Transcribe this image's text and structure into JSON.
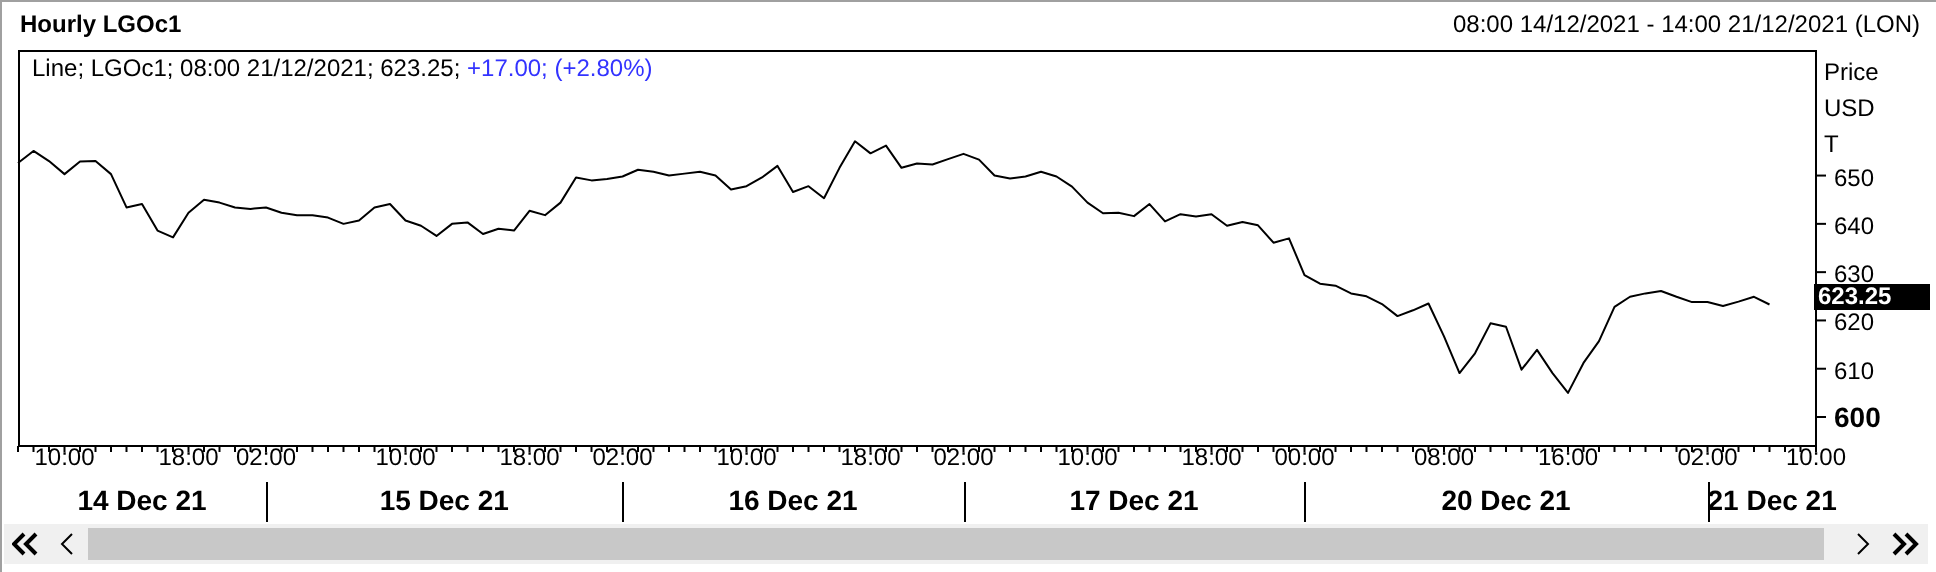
{
  "chart_data": {
    "type": "line",
    "title": "Hourly LGOc1",
    "subtitle": "08:00 14/12/2021 - 14:00 21/12/2021 (LON)",
    "ylabel": "Price USD T",
    "categories": [
      null,
      null,
      null,
      "10:00",
      null,
      null,
      null,
      null,
      null,
      null,
      null,
      "18:00",
      null,
      null,
      null,
      null,
      "02:00",
      null,
      null,
      null,
      null,
      null,
      null,
      null,
      null,
      "10:00",
      null,
      null,
      null,
      null,
      null,
      null,
      null,
      "18:00",
      null,
      null,
      null,
      null,
      null,
      "02:00",
      null,
      null,
      null,
      null,
      null,
      null,
      null,
      "10:00",
      null,
      null,
      null,
      null,
      null,
      null,
      null,
      "18:00",
      null,
      null,
      null,
      null,
      null,
      "02:00",
      null,
      null,
      null,
      null,
      null,
      null,
      null,
      "10:00",
      null,
      null,
      null,
      null,
      null,
      null,
      null,
      "18:00",
      null,
      null,
      null,
      null,
      null,
      "00:00",
      null,
      null,
      null,
      null,
      null,
      null,
      null,
      null,
      "08:00",
      null,
      null,
      null,
      null,
      null,
      null,
      null,
      "16:00",
      null,
      null,
      null,
      null,
      null,
      null,
      null,
      null,
      "02:00",
      null,
      null,
      null,
      null,
      null,
      null,
      "10:00"
    ],
    "series": [
      {
        "color": "#000000",
        "values": [
          652.6,
          655.1,
          653.0,
          650.3,
          652.9,
          653.0,
          650.3,
          643.4,
          644.1,
          638.6,
          637.2,
          642.3,
          645.0,
          644.4,
          643.4,
          643.1,
          643.4,
          642.3,
          641.8,
          641.8,
          641.3,
          640.0,
          640.7,
          643.4,
          644.1,
          640.7,
          639.6,
          637.5,
          640.0,
          640.3,
          637.9,
          639.0,
          638.6,
          642.7,
          641.8,
          644.4,
          649.6,
          649.0,
          649.3,
          649.8,
          651.2,
          650.8,
          650.0,
          650.4,
          650.8,
          650.0,
          647.1,
          647.8,
          649.6,
          652.0,
          646.6,
          647.8,
          645.3,
          651.6,
          657.1,
          654.6,
          656.2,
          651.6,
          652.5,
          652.3,
          653.4,
          654.5,
          653.3,
          650.0,
          649.4,
          649.8,
          650.8,
          649.8,
          647.7,
          644.4,
          642.2,
          642.3,
          641.6,
          644.1,
          640.5,
          642.0,
          641.5,
          642.0,
          639.6,
          640.4,
          639.7,
          636.1,
          637.0,
          629.4,
          627.6,
          627.2,
          625.6,
          625.0,
          623.4,
          620.9,
          622.1,
          623.5,
          616.7,
          609.1,
          613.2,
          619.4,
          618.7,
          609.8,
          613.9,
          609.1,
          605.0,
          611.2,
          615.7,
          622.8,
          624.9,
          625.6,
          626.1,
          624.9,
          623.8,
          623.8,
          623.0,
          623.9,
          624.9,
          623.3,
          null,
          null,
          null
        ]
      }
    ],
    "ylim": [
      594,
      676
    ],
    "yticks": [
      600,
      610,
      620,
      630,
      640,
      650
    ],
    "grid": false,
    "legend": false,
    "marker": "none",
    "line_style": "solid",
    "annotations": [
      "Line; LGOc1; 08:00 21/12/2021; 623.25;",
      "+17.00; (+2.80%)",
      "623.25",
      "14 Dec 21",
      "15 Dec 21",
      "16 Dec 21",
      "17 Dec 21",
      "20 Dec 21",
      "21 Dec 21"
    ]
  }
}
